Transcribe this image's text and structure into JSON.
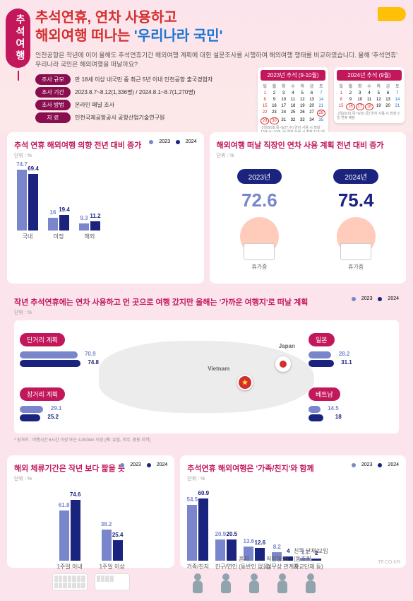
{
  "colors": {
    "primary": "#c2185b",
    "y2023": "#7986cb",
    "y2024": "#1a237e",
    "accent": "#d32f2f",
    "blue": "#1976d2"
  },
  "header": {
    "side_tag": "추석여행",
    "title_l1": "추석연휴, 연차 사용하고",
    "title_l2_a": "해외여행 떠나는 ",
    "title_l2_b": "'우리나라 국민'",
    "desc": "인천공항은 작년에 이어 올해도 추석연휴기간 해외여행 계획에 대한 설문조사를 시행하여 해외여행 행태를 비교하였습니다. 올해 '추석연휴' 우리나라 국민은 해외여행을 떠날까요?",
    "meta": [
      {
        "label": "조사 규모",
        "val": "만 18세 이상 내국민 중 최근 5년 이내 인천공항 출국경험자"
      },
      {
        "label": "조사 기간",
        "val": "2023.8.7~8.12(1,336명) / 2024.8.1~8.7(1,270명)"
      },
      {
        "label": "조사 방법",
        "val": "온라인 패널 조사"
      },
      {
        "label": "자 료",
        "val": "인천국제공항공사 공항산업기술연구원"
      }
    ],
    "cal1": {
      "head": "2023년 추석 (9-10월)",
      "note": "·3일(9/28.목~9/27.수) 연차 사용 시 최대 10/4.수~10/6.금) 연차 사용 시 최장 11일 연휴 예정"
    },
    "cal2": {
      "head": "2024년 추석 (9월)",
      "note": "·2일(9/19.목~9/20.금) 연차 사용 시 최장 9일 연휴 예정"
    }
  },
  "legend": {
    "y2023": "2023",
    "y2024": "2024"
  },
  "panel1": {
    "title": "추석 연휴 해외여행 의향 전년 대비 증가",
    "unit": "단위 : %",
    "groups": [
      {
        "label": "국내",
        "v2023": 74.7,
        "v2024": 69.4
      },
      {
        "label": "미정",
        "v2023": 16.0,
        "v2024": 19.4
      },
      {
        "label": "해외",
        "v2023": 9.3,
        "v2024": 11.2
      }
    ],
    "scale": 1.15
  },
  "panel2": {
    "title": "해외여행 떠날 직장인 연차 사용 계획 전년 대비 증가",
    "unit": "단위 : %",
    "y2023": {
      "year": "2023년",
      "val": "72.6",
      "sub": "휴가중"
    },
    "y2024": {
      "year": "2024년",
      "val": "75.4",
      "sub": "휴가중"
    }
  },
  "panel3": {
    "title": "작년 추석연휴에는 연차 사용하고 먼 곳으로 여행 갔지만 올해는 '가까운 여행지'로 떠날 계획",
    "unit": "단위 : %",
    "left": [
      {
        "label": "단거리 계획",
        "v2023": 70.9,
        "v2024": 74.8
      },
      {
        "label": "장거리 계획",
        "v2023": 29.1,
        "v2024": 25.2
      }
    ],
    "right": [
      {
        "label": "일본",
        "v2023": 28.2,
        "v2024": 31.1
      },
      {
        "label": "베트남",
        "v2023": 14.5,
        "v2024": 18.0
      }
    ],
    "countries": {
      "jp": "Japan",
      "vn": "Vietnam"
    },
    "note": "* 장거리 : 비행시간 6시간 이상 또는 4,000km 이상 (예: 유럽, 미주, 중동 지역)"
  },
  "panel4": {
    "title": "해외 체류기간은 작년 보다 짧을 듯",
    "unit": "단위 : %",
    "groups": [
      {
        "label": "1주일 이내",
        "v2023": 61.8,
        "v2024": 74.6
      },
      {
        "label": "1주일 이상",
        "v2023": 38.2,
        "v2024": 25.4
      }
    ],
    "scale": 1.15
  },
  "panel5": {
    "title": "추석연휴 해외여행은 '가족/친지'와 함께",
    "unit": "단위 : %",
    "groups": [
      {
        "label": "가족/친지",
        "v2023": 54.5,
        "v2024": 60.9
      },
      {
        "label": "친구/연인",
        "v2023": 20.9,
        "v2024": 20.5
      },
      {
        "label": "혼자\n(동반인 없음)",
        "v2023": 13.6,
        "v2024": 12.6
      },
      {
        "label": "직장동료/\n업무상 관계자",
        "v2023": 8.2,
        "v2024": 4.0
      },
      {
        "label": "친목 단체/모임\n(동호회,\n종교단체 등)",
        "v2023": 2.7,
        "v2024": 2.0
      }
    ],
    "scale": 1.45
  },
  "watermark": "TF.CO.KR"
}
